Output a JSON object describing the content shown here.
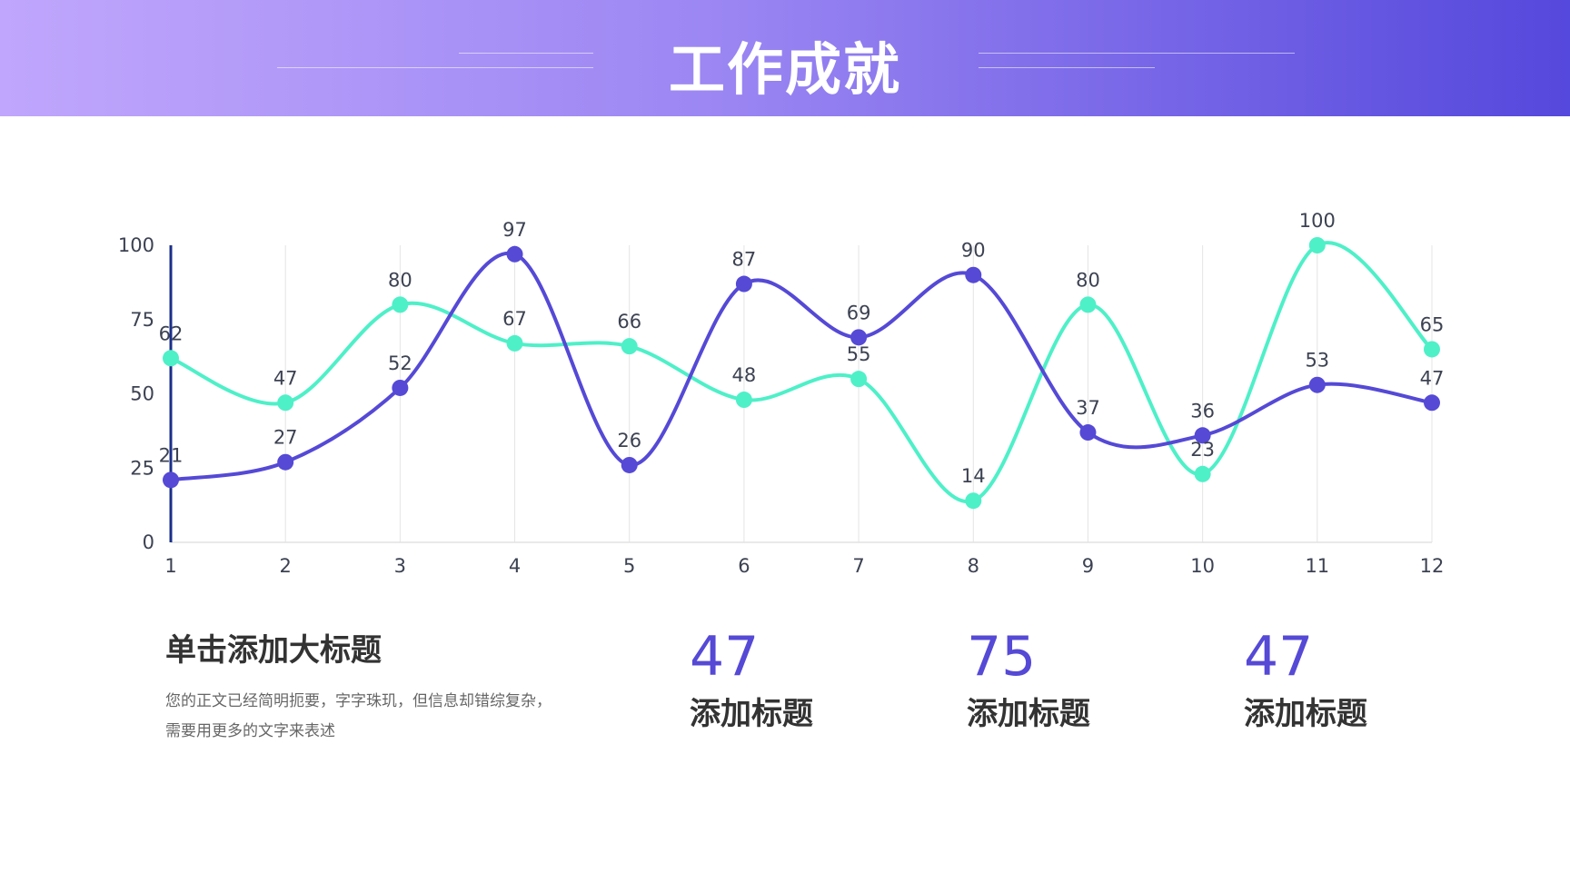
{
  "header": {
    "title": "工作成就"
  },
  "colors": {
    "series_purple": "#5549d6",
    "series_teal": "#4ef0c8",
    "axis_text": "#3c4252",
    "grid": "#e4e4e4",
    "highlight_axis": "#1a2f8a"
  },
  "chart_data": {
    "type": "line",
    "categories": [
      "1",
      "2",
      "3",
      "4",
      "5",
      "6",
      "7",
      "8",
      "9",
      "10",
      "11",
      "12"
    ],
    "series": [
      {
        "values": [
          21,
          27,
          52,
          97,
          26,
          87,
          69,
          90,
          37,
          36,
          53,
          47
        ],
        "color": "#5549d6",
        "smooth": true
      },
      {
        "values": [
          62,
          47,
          80,
          67,
          66,
          48,
          55,
          14,
          80,
          23,
          100,
          65
        ],
        "color": "#4ef0c8",
        "smooth": true
      }
    ],
    "ylim": [
      0,
      100
    ],
    "yticks": [
      "0",
      "25",
      "50",
      "75",
      "100"
    ],
    "grid": "vertical",
    "data_labels": true,
    "title": "",
    "xlabel": "",
    "ylabel": ""
  },
  "content": {
    "block_title": "单击添加大标题",
    "block_body": "您的正文已经简明扼要，字字珠玑，但信息却错综复杂，需要用更多的文字来表述"
  },
  "stats": [
    {
      "value": "47",
      "label": "添加标题"
    },
    {
      "value": "75",
      "label": "添加标题"
    },
    {
      "value": "47",
      "label": "添加标题"
    }
  ]
}
